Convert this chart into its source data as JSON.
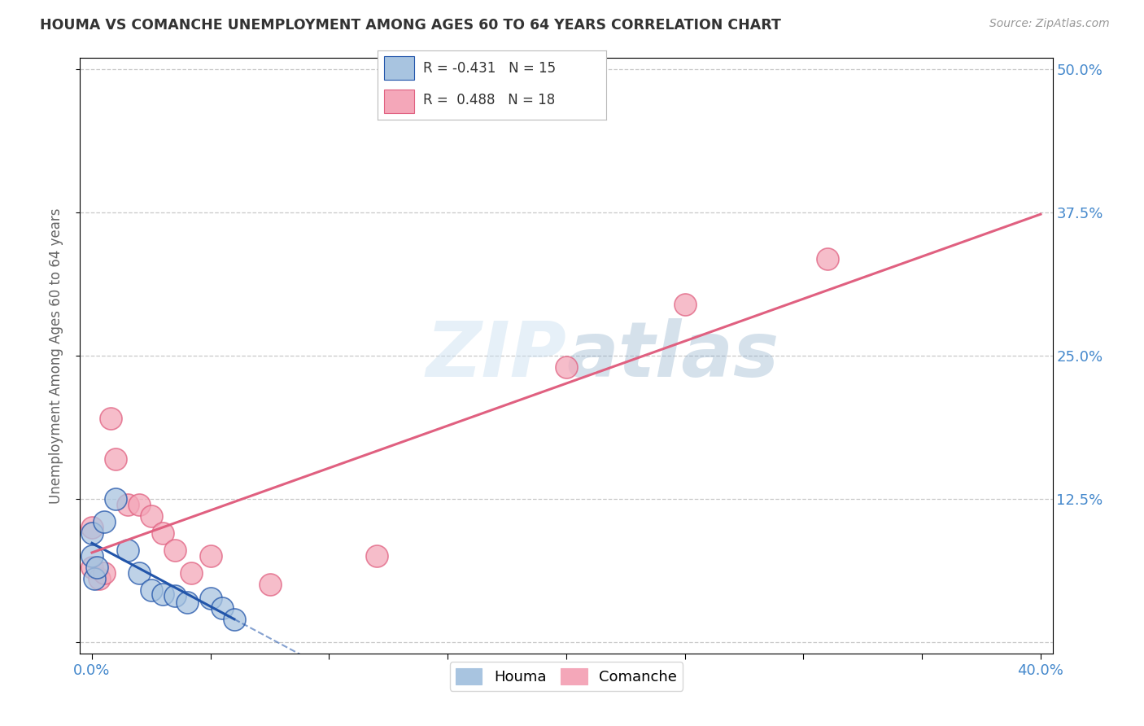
{
  "title": "HOUMA VS COMANCHE UNEMPLOYMENT AMONG AGES 60 TO 64 YEARS CORRELATION CHART",
  "source": "Source: ZipAtlas.com",
  "ylabel": "Unemployment Among Ages 60 to 64 years",
  "xlim": [
    -0.005,
    0.405
  ],
  "ylim": [
    -0.01,
    0.51
  ],
  "yticks": [
    0.0,
    0.125,
    0.25,
    0.375,
    0.5
  ],
  "ytick_labels": [
    "",
    "12.5%",
    "25.0%",
    "37.5%",
    "50.0%"
  ],
  "xticks": [
    0.0,
    0.05,
    0.1,
    0.15,
    0.2,
    0.25,
    0.3,
    0.35,
    0.4
  ],
  "xtick_labels_show": {
    "0.0": "0.0%",
    "0.4": "40.0%"
  },
  "houma_color": "#a8c4e0",
  "comanche_color": "#f4a7b9",
  "houma_line_color": "#2255aa",
  "comanche_line_color": "#e06080",
  "houma_R": -0.431,
  "houma_N": 15,
  "comanche_R": 0.488,
  "comanche_N": 18,
  "background_color": "#ffffff",
  "grid_color": "#bbbbbb",
  "watermark": "ZIPatlas",
  "houma_x": [
    0.0,
    0.0,
    0.001,
    0.002,
    0.005,
    0.01,
    0.015,
    0.02,
    0.025,
    0.03,
    0.035,
    0.04,
    0.05,
    0.055,
    0.06
  ],
  "houma_y": [
    0.075,
    0.095,
    0.055,
    0.065,
    0.105,
    0.125,
    0.08,
    0.06,
    0.045,
    0.042,
    0.04,
    0.035,
    0.038,
    0.03,
    0.02
  ],
  "comanche_x": [
    0.0,
    0.0,
    0.003,
    0.005,
    0.008,
    0.01,
    0.015,
    0.02,
    0.025,
    0.03,
    0.035,
    0.042,
    0.05,
    0.075,
    0.12,
    0.2,
    0.25,
    0.31
  ],
  "comanche_y": [
    0.065,
    0.1,
    0.055,
    0.06,
    0.195,
    0.16,
    0.12,
    0.12,
    0.11,
    0.095,
    0.08,
    0.06,
    0.075,
    0.05,
    0.075,
    0.24,
    0.295,
    0.335
  ]
}
